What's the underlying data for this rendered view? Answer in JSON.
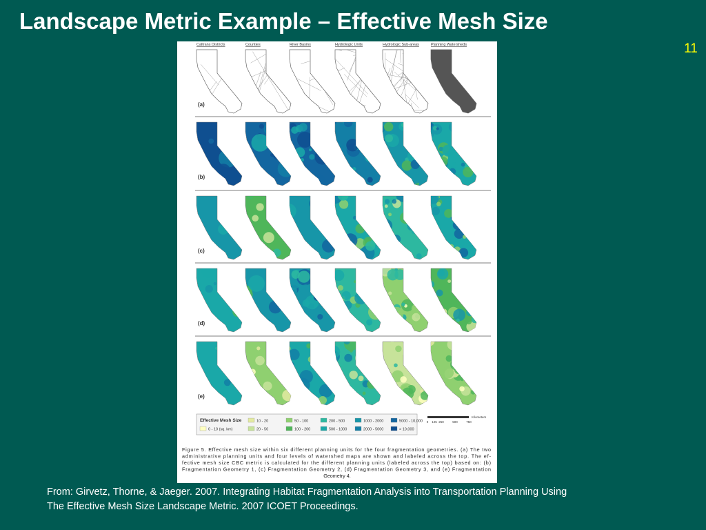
{
  "header": {
    "title": "Landscape Metric Example – Effective Mesh Size",
    "slide_number": "11"
  },
  "figure": {
    "column_labels": [
      "Caltrans Districts",
      "Counties",
      "River Basins",
      "Hydrologic Units",
      "Hydrologic Sub-areas",
      "Planning Watersheds"
    ],
    "row_labels": [
      "(a)",
      "(b)",
      "(c)",
      "(d)",
      "(e)"
    ],
    "legend": {
      "title": "Effective Mesh Size",
      "items": [
        "0 - 10 (sq. km)",
        "10 - 20",
        "20 - 50",
        "50 - 100",
        "100 - 200",
        "200 - 500",
        "500 - 1000",
        "1000 - 2000",
        "2000 - 5000",
        "5000 - 10,000",
        "> 10,000"
      ]
    },
    "scale_bar": {
      "unit": "Kilometers",
      "labels": [
        "0",
        "125",
        "250",
        "500",
        "750"
      ]
    },
    "caption": [
      "Figure 5. Effective mesh size within six different planning units for the four fragmentation geometries. (a) The two",
      "administrative planning units and four levels of watershed maps are shown and labeled across the top. The ef-",
      "fective mesh size CBC metric is calculated for the different planning units (labeled across the top) based on: (b)",
      "Fragmentation Geometry 1, (c) Fragmentation Geometry 2, (d) Fragmentation Geometry 3, and (e) Fragmentation",
      "Geometry 4."
    ]
  },
  "citation": [
    "From: Girvetz, Thorne, & Jaeger. 2007. Integrating Habitat Fragmentation Analysis into Transportation Planning Using",
    "The Effective Mesh Size Landscape Metric. 2007 ICOET Proceedings."
  ]
}
